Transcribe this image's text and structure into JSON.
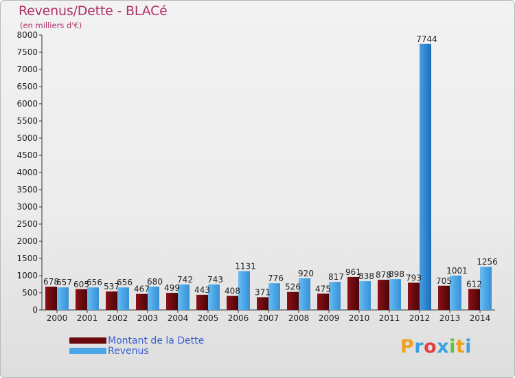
{
  "title": "Revenus/Dette - BLACé",
  "subtitle": "(en milliers d'€)",
  "colors": {
    "dette": "#6b0a0f",
    "revenus": "#4aa6e6",
    "revenus_highlight": "#2f86d0",
    "title": "#b03068",
    "legend_text": "#3a5fd0"
  },
  "chart_data": {
    "type": "bar",
    "title": "Revenus/Dette - BLACé",
    "subtitle": "(en milliers d'€)",
    "xlabel": "",
    "ylabel": "",
    "ylim": [
      0,
      8000
    ],
    "yticks": [
      0,
      500,
      1000,
      1500,
      2000,
      2500,
      3000,
      3500,
      4000,
      4500,
      5000,
      5500,
      6000,
      6500,
      7000,
      7500,
      8000
    ],
    "categories": [
      "2000",
      "2001",
      "2002",
      "2003",
      "2004",
      "2005",
      "2006",
      "2007",
      "2008",
      "2009",
      "2010",
      "2011",
      "2012",
      "2013",
      "2014"
    ],
    "series": [
      {
        "name": "Montant de la Dette",
        "values": [
          678,
          605,
          537,
          467,
          499,
          443,
          408,
          371,
          526,
          475,
          961,
          878,
          793,
          705,
          612
        ]
      },
      {
        "name": "Revenus",
        "values": [
          657,
          656,
          656,
          680,
          742,
          743,
          1131,
          776,
          920,
          817,
          838,
          898,
          7744,
          1001,
          1256
        ]
      }
    ],
    "grid": false,
    "legend_position": "bottom-left"
  },
  "legend": [
    {
      "label": "Montant de la Dette",
      "color": "#6b0a0f"
    },
    {
      "label": "Revenus",
      "color": "#4aa6e6"
    }
  ],
  "logo": {
    "text": "Proxiti",
    "letters": [
      "P",
      "r",
      "o",
      "x",
      "i",
      "t",
      "i"
    ],
    "letter_colors": [
      "#f0a020",
      "#3aa0e0",
      "#e04040",
      "#3aa0e0",
      "#60c040",
      "#f0a020",
      "#3aa0e0"
    ]
  }
}
